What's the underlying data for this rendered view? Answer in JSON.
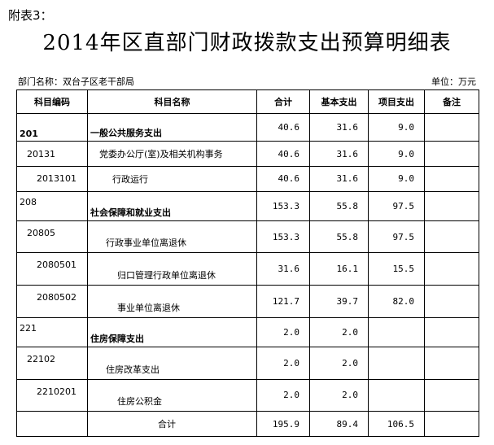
{
  "attachment": "附表3：",
  "title": "2014年区直部门财政拨款支出预算明细表",
  "department": "部门名称：双台子区老干部局",
  "unit": "单位：万元",
  "headers": [
    "科目编码",
    "科目名称",
    "合计",
    "基本支出",
    "项目支出",
    "备注"
  ],
  "rows": [
    {
      "code": "201",
      "name": "一般公共服务支出",
      "total": "40.6",
      "basic": "31.6",
      "project": "9.0",
      "note": ""
    },
    {
      "code": "20131",
      "name": "党委办公厅(室)及相关机构事务",
      "total": "40.6",
      "basic": "31.6",
      "project": "9.0",
      "note": ""
    },
    {
      "code": "2013101",
      "name": "行政运行",
      "total": "40.6",
      "basic": "31.6",
      "project": "9.0",
      "note": ""
    },
    {
      "code": "208",
      "name": "社会保障和就业支出",
      "total": "153.3",
      "basic": "55.8",
      "project": "97.5",
      "note": ""
    },
    {
      "code": "20805",
      "name": "行政事业单位离退休",
      "total": "153.3",
      "basic": "55.8",
      "project": "97.5",
      "note": ""
    },
    {
      "code": "2080501",
      "name": "归口管理行政单位离退休",
      "total": "31.6",
      "basic": "16.1",
      "project": "15.5",
      "note": ""
    },
    {
      "code": "2080502",
      "name": "事业单位离退休",
      "total": "121.7",
      "basic": "39.7",
      "project": "82.0",
      "note": ""
    },
    {
      "code": "221",
      "name": "住房保障支出",
      "total": "2.0",
      "basic": "2.0",
      "project": "",
      "note": ""
    },
    {
      "code": "22102",
      "name": "住房改革支出",
      "total": "2.0",
      "basic": "2.0",
      "project": "",
      "note": ""
    },
    {
      "code": "2210201",
      "name": "住房公积金",
      "total": "2.0",
      "basic": "2.0",
      "project": "",
      "note": ""
    },
    {
      "code": "",
      "name": "合计",
      "total": "195.9",
      "basic": "89.4",
      "project": "106.5",
      "note": ""
    }
  ]
}
